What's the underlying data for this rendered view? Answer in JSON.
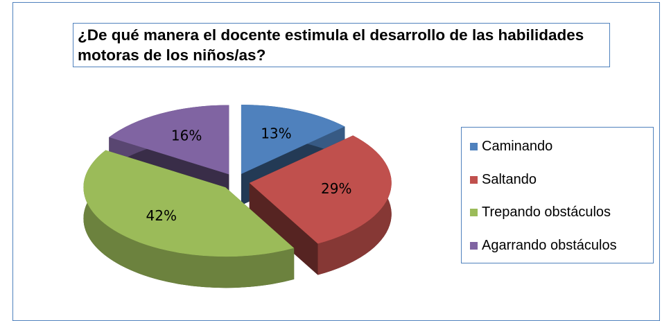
{
  "chart_data": {
    "type": "pie",
    "title": "¿De qué manera el docente estimula el desarrollo de las habilidades motoras de los niños/as?",
    "categories": [
      "Caminando",
      "Saltando",
      "Trepando obstáculos",
      "Agarrando obstáculos"
    ],
    "values": [
      13,
      29,
      42,
      16
    ],
    "value_labels": [
      "13%",
      "29%",
      "42%",
      "16%"
    ],
    "colors": [
      "#4f81bd",
      "#c0504d",
      "#9bbb59",
      "#8064a2"
    ],
    "legend": "right"
  }
}
